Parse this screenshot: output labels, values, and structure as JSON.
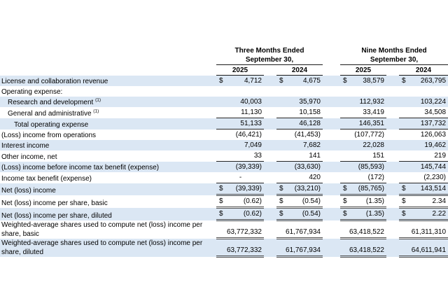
{
  "document": {
    "type": "condensed statements of operations table",
    "colors": {
      "row_stripe": "#dbe7f4",
      "border_single": "#262626",
      "border_double": "#4f4f4f",
      "text": "#000000",
      "background": "#ffffff"
    }
  },
  "header": {
    "groups": [
      {
        "title": "Three Months Ended",
        "subtitle": "September 30,",
        "years": [
          "2025",
          "2024"
        ]
      },
      {
        "title": "Nine Months Ended",
        "subtitle": "September 30,",
        "years": [
          "2025",
          "2024"
        ]
      }
    ]
  },
  "rows": [
    {
      "label": "License and collaboration revenue",
      "indent": 0,
      "dollar": true,
      "border": "none",
      "values": [
        "4,712",
        "4,675",
        "38,579",
        "263,795"
      ]
    },
    {
      "label": "Operating expense:",
      "indent": 0,
      "dollar": false,
      "border": "none",
      "values": null
    },
    {
      "label": "Research and development",
      "sup": "(1)",
      "indent": 1,
      "dollar": false,
      "border": "none",
      "values": [
        "40,003",
        "35,970",
        "112,932",
        "103,224"
      ]
    },
    {
      "label": "General and administrative",
      "sup": "(1)",
      "indent": 1,
      "dollar": false,
      "border": "single",
      "values": [
        "11,130",
        "10,158",
        "33,419",
        "34,508"
      ]
    },
    {
      "label": "Total operating expense",
      "indent": 2,
      "dollar": false,
      "border": "single",
      "values": [
        "51,133",
        "46,128",
        "146,351",
        "137,732"
      ]
    },
    {
      "label": "(Loss) income from operations",
      "indent": 0,
      "dollar": false,
      "border": "none",
      "values": [
        "(46,421)",
        "(41,453)",
        "(107,772)",
        "126,063"
      ]
    },
    {
      "label": "Interest income",
      "indent": 0,
      "dollar": false,
      "border": "none",
      "values": [
        "7,049",
        "7,682",
        "22,028",
        "19,462"
      ]
    },
    {
      "label": "Other income, net",
      "indent": 0,
      "dollar": false,
      "border": "single",
      "values": [
        "33",
        "141",
        "151",
        "219"
      ]
    },
    {
      "label": "(Loss) income before income tax benefit (expense)",
      "indent": 0,
      "dollar": false,
      "border": "none",
      "values": [
        "(39,339)",
        "(33,630)",
        "(85,593)",
        "145,744"
      ]
    },
    {
      "label": "Income tax benefit (expense)",
      "indent": 0,
      "dollar": false,
      "border": "single",
      "values": [
        "-",
        "420",
        "(172)",
        "(2,230)"
      ]
    },
    {
      "label": "Net (loss) income",
      "indent": 0,
      "dollar": true,
      "border": "double",
      "values": [
        "(39,339)",
        "(33,210)",
        "(85,765)",
        "143,514"
      ]
    },
    {
      "label": "Net (loss) income per share, basic",
      "indent": 0,
      "dollar": true,
      "border": "double",
      "values": [
        "(0.62)",
        "(0.54)",
        "(1.35)",
        "2.34"
      ]
    },
    {
      "label": "Net (loss) income per share, diluted",
      "indent": 0,
      "dollar": true,
      "border": "double",
      "values": [
        "(0.62)",
        "(0.54)",
        "(1.35)",
        "2.22"
      ]
    },
    {
      "label": "Weighted-average shares used to compute net (loss) income per\nshare, basic",
      "indent": 0,
      "dollar": false,
      "border": "double",
      "values": [
        "63,772,332",
        "61,767,934",
        "63,418,522",
        "61,311,310"
      ]
    },
    {
      "label": "Weighted-average shares used to compute net (loss) income per\nshare, diluted",
      "indent": 0,
      "dollar": false,
      "border": "double",
      "values": [
        "63,772,332",
        "61,767,934",
        "63,418,522",
        "64,611,941"
      ]
    }
  ]
}
